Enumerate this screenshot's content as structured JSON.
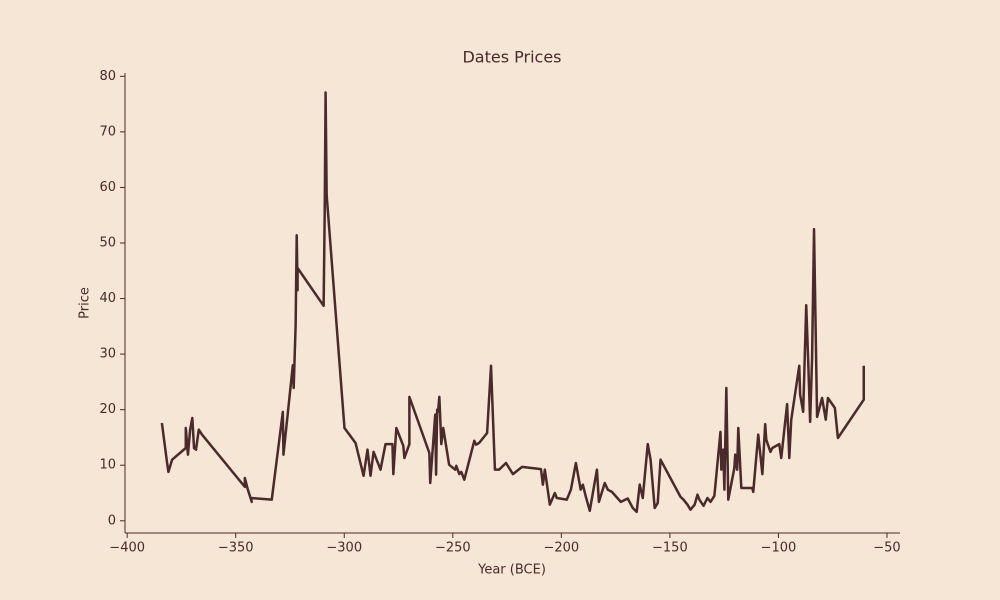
{
  "chart_data": {
    "type": "line",
    "title": "Dates Prices",
    "x_label": "Year (BCE)",
    "y_label": "Price",
    "color": "#4a2a2a",
    "x": [
      -384,
      -381.6,
      -381,
      -379.3,
      -373,
      -373,
      -372,
      -371,
      -370,
      -369.2,
      -368.3,
      -367,
      -365.5,
      -345.8,
      -345.8,
      -344.4,
      -342.6,
      -343,
      -333.4,
      -328.3,
      -328,
      -323.7,
      -323.3,
      -322.4,
      -321.9,
      -321.5,
      -321.5,
      -309.5,
      -309,
      -308.6,
      -308.1,
      -299.9,
      -294.8,
      -291.1,
      -289.3,
      -287.9,
      -286.5,
      -283.3,
      -281,
      -277.8,
      -277.4,
      -276,
      -272.8,
      -272.3,
      -270,
      -270,
      -260.8,
      -260.4,
      -258.1,
      -257.7,
      -257.2,
      -256.8,
      -256.2,
      -255.3,
      -254.4,
      -251.7,
      -248.9,
      -248.4,
      -247,
      -246.1,
      -244.7,
      -240.1,
      -239.3,
      -237.9,
      -234.2,
      -232.4,
      -230.6,
      -228.7,
      -225.5,
      -222.3,
      -218.1,
      -209.4,
      -208.5,
      -207.6,
      -205.3,
      -203,
      -202.1,
      -197.5,
      -195.6,
      -193.3,
      -191.1,
      -190.1,
      -188.7,
      -186.9,
      -185,
      -183.6,
      -182.7,
      -180,
      -178.6,
      -176.7,
      -172.6,
      -169.4,
      -167.1,
      -165.3,
      -163.9,
      -162.5,
      -160.2,
      -158.9,
      -157,
      -155.6,
      -154.3,
      -145.1,
      -143.7,
      -141.9,
      -140.5,
      -138.6,
      -137.3,
      -136.4,
      -134.5,
      -132.7,
      -131.3,
      -129.5,
      -126.7,
      -126.3,
      -125.4,
      -124.9,
      -124,
      -123.1,
      -120.3,
      -119.9,
      -119,
      -118.5,
      -117.1,
      -112.1,
      -111.6,
      -109.3,
      -107.4,
      -106.1,
      -105.6,
      -103.7,
      -102.8,
      -99.6,
      -98.7,
      -96,
      -95,
      -94.1,
      -90.4,
      -90,
      -88.6,
      -87.2,
      -86.3,
      -85.4,
      -84.5,
      -83.6,
      -82.2,
      -79.9,
      -78.2,
      -77.2,
      -74,
      -72.6,
      -60.7,
      -60.7
    ],
    "values": [
      17.6,
      10.4,
      8.8,
      11,
      13.1,
      16.7,
      11.9,
      16.4,
      18.5,
      13.1,
      12.8,
      16.4,
      15.5,
      6.1,
      7.7,
      5.6,
      3.4,
      4.1,
      3.8,
      19.6,
      11.9,
      28,
      23.9,
      35.2,
      51.4,
      41.5,
      45.5,
      38.7,
      55.9,
      77.1,
      58.6,
      16.7,
      14,
      8.1,
      12.8,
      8.1,
      12.4,
      9.2,
      13.8,
      13.8,
      8.4,
      16.7,
      13.5,
      11.3,
      13.8,
      22.3,
      12.2,
      6.8,
      19.1,
      8.3,
      20,
      19.6,
      22.3,
      13.8,
      16.7,
      10.1,
      9.2,
      9.9,
      8.4,
      8.8,
      7.4,
      14.4,
      13.7,
      14,
      15.8,
      27.9,
      9.2,
      9.2,
      10.4,
      8.4,
      9.7,
      9.3,
      6.5,
      9.2,
      2.9,
      5,
      4.1,
      3.8,
      5.6,
      10.4,
      5.6,
      6.5,
      4.3,
      1.8,
      6.1,
      9.2,
      3.4,
      6.8,
      5.6,
      5.2,
      3.4,
      4,
      2.3,
      1.6,
      6.5,
      4.1,
      13.8,
      11,
      2.3,
      3.2,
      11,
      4.3,
      3.8,
      2.9,
      2,
      2.9,
      4.7,
      3.8,
      2.7,
      4.1,
      3.4,
      4.5,
      16,
      9.2,
      12.8,
      5.6,
      23.9,
      3.8,
      9.5,
      11.9,
      9.2,
      16.7,
      5.9,
      5.9,
      5.2,
      15.5,
      8.4,
      17.4,
      14.6,
      12.4,
      13.1,
      13.8,
      11.3,
      21,
      11.3,
      18.2,
      27.9,
      22.7,
      19.6,
      38.8,
      28.9,
      17.8,
      29.3,
      52.5,
      18.7,
      22.1,
      18.2,
      22.1,
      20.3,
      14.9,
      21.8,
      27.9
    ],
    "xlim": [
      -401,
      -44
    ],
    "ylim": [
      -2.2,
      80.6
    ],
    "xticks": [
      {
        "value": -400,
        "label": "−400"
      },
      {
        "value": -350,
        "label": "−350"
      },
      {
        "value": -300,
        "label": "−300"
      },
      {
        "value": -250,
        "label": "−250"
      },
      {
        "value": -200,
        "label": "−200"
      },
      {
        "value": -150,
        "label": "−150"
      },
      {
        "value": -100,
        "label": "−100"
      },
      {
        "value": -50,
        "label": "−50"
      }
    ],
    "yticks": [
      0,
      10,
      20,
      30,
      40,
      50,
      60,
      70,
      80
    ]
  }
}
